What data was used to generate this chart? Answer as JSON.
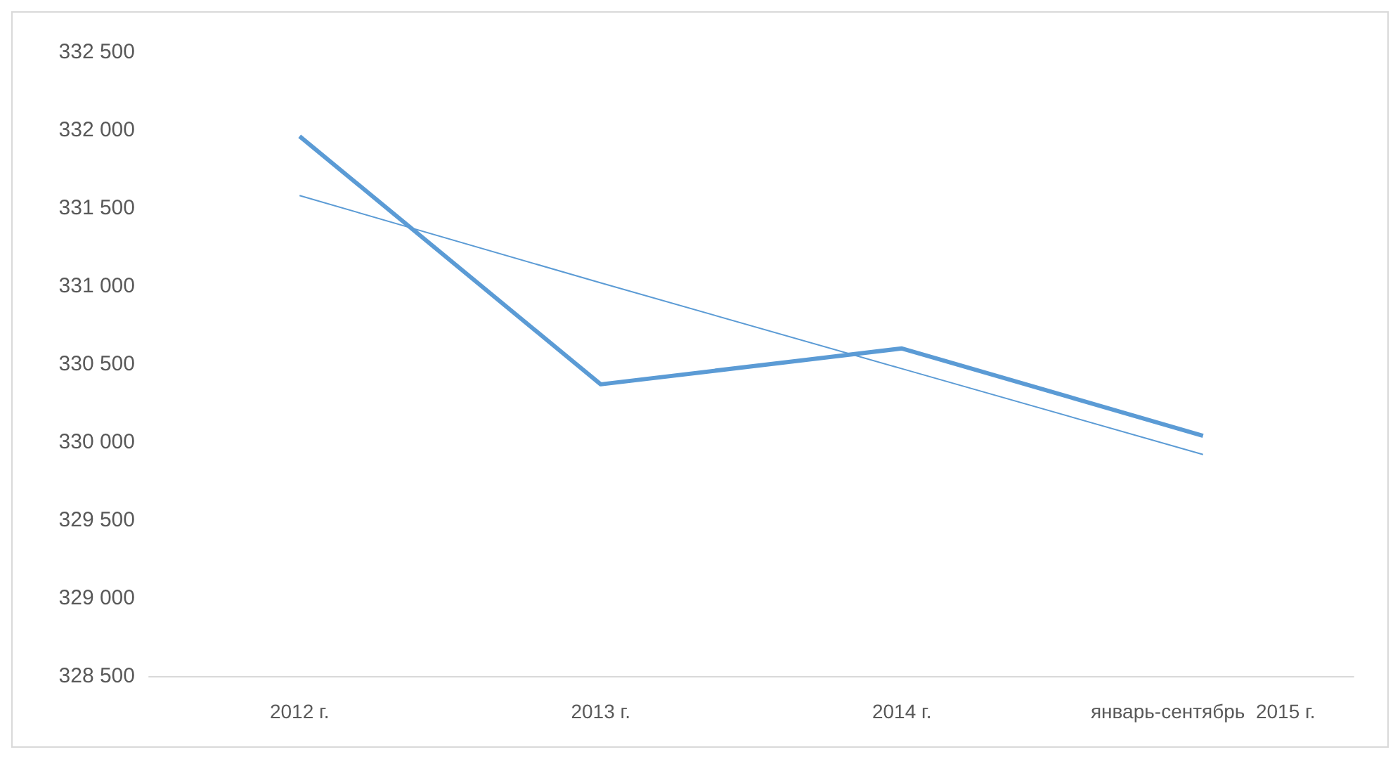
{
  "chart_data": {
    "type": "line",
    "categories": [
      "2012 г.",
      "2013 г.",
      "2014 г.",
      "январь-сентябрь  2015 г."
    ],
    "series": [
      {
        "color": "#5b9bd5",
        "values": [
          331960,
          330370,
          330600,
          330040
        ]
      },
      {
        "type": "line",
        "color": "#5b9bd5",
        "values": [
          331580,
          331020,
          330470,
          329920
        ]
      }
    ],
    "ylim": [
      328500,
      332500
    ],
    "yticks": [
      328500,
      329000,
      329500,
      330000,
      330500,
      331000,
      331500,
      332000,
      332500
    ],
    "grid": false,
    "marker": "none",
    "line_style": "solid"
  }
}
